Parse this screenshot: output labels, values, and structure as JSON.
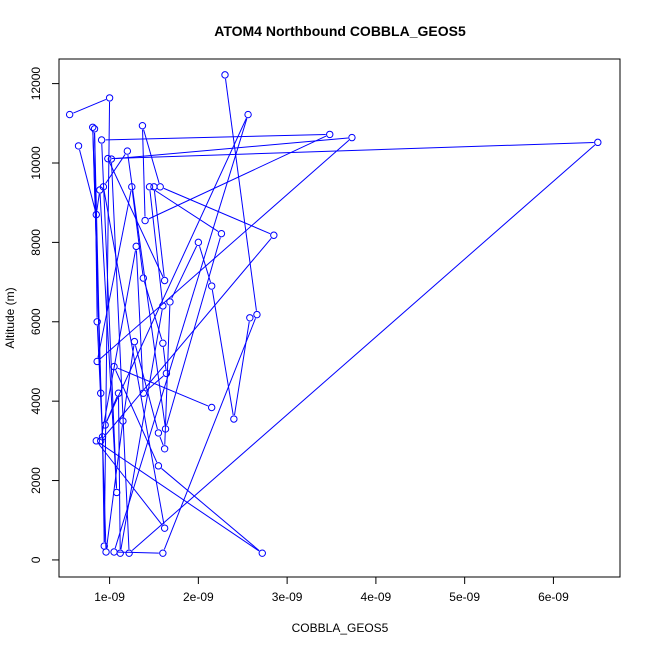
{
  "chart_data": {
    "type": "line",
    "title": "ATOM4 Northbound COBBLA_GEOS5",
    "xlabel": "COBBLA_GEOS5",
    "ylabel": "Altitude (m)",
    "xlim": [
      4.3e-10,
      6.75e-09
    ],
    "ylim": [
      -430,
      12620
    ],
    "x_ticks": [
      1e-09,
      2e-09,
      3e-09,
      4e-09,
      5e-09,
      6e-09
    ],
    "x_tick_labels": [
      "1e-09",
      "2e-09",
      "3e-09",
      "4e-09",
      "5e-09",
      "6e-09"
    ],
    "y_ticks": [
      0,
      2000,
      4000,
      6000,
      8000,
      10000,
      12000
    ],
    "y_tick_labels": [
      "0",
      "2000",
      "4000",
      "6000",
      "8000",
      "10000",
      "12000"
    ],
    "grid": false,
    "legend": "none",
    "series_color": "#0000ff",
    "series": [
      {
        "x": [
          5.5e-10,
          1e-09,
          9.4e-10,
          9.2e-10,
          8.6e-10,
          8.3e-10,
          9e-10,
          8.1e-10,
          9.6e-10,
          1.15e-09,
          1.28e-09,
          1.55e-09,
          1.62e-09,
          1.68e-09,
          2e-09,
          2.15e-09,
          2.4e-09,
          2.58e-09
        ],
        "y": [
          11220,
          11640,
          350,
          3100,
          6000,
          10860,
          4200,
          10900,
          200,
          3500,
          5500,
          3200,
          2800,
          6500,
          8000,
          6900,
          3550,
          6100
        ],
        "note": ""
      },
      {
        "x": [
          2.3e-09,
          2.66e-09,
          1.6e-09,
          1.05e-09,
          2.56e-09,
          9.5e-10,
          1.1e-09,
          1.12e-09,
          1.6e-09,
          1.45e-09,
          2.26e-09,
          1.63e-09,
          1.2e-09,
          9.3e-10,
          1.62e-09,
          8.5e-10,
          2.72e-09,
          1.55e-09,
          1.05e-09,
          2.15e-09
        ],
        "y": [
          12220,
          6180,
          170,
          200,
          11220,
          3400,
          4200,
          170,
          6400,
          9400,
          8220,
          3300,
          10300,
          9400,
          800,
          3000,
          170,
          2370,
          4870,
          3840
        ]
      },
      {
        "x": [
          6.5e-10,
          8.5e-10,
          8.9e-10,
          1.08e-09,
          9.1e-10,
          3.48e-09,
          1.4e-09,
          1.37e-09,
          1.57e-09,
          2.85e-09,
          9e-10,
          1.3e-09,
          1.38e-09,
          1.64e-09,
          1.6e-09,
          1.38e-09,
          1.25e-09,
          8.6e-10,
          3.73e-09,
          1.02e-09,
          1.22e-09,
          6.5e-09,
          9.8e-10,
          1.62e-09,
          1.5e-09
        ],
        "y": [
          10430,
          8700,
          9320,
          1700,
          10580,
          10720,
          8550,
          10940,
          9400,
          8180,
          3000,
          7900,
          4200,
          4700,
          5460,
          7100,
          9400,
          5000,
          10640,
          10100,
          170,
          10520,
          10110,
          7040,
          9400
        ]
      }
    ]
  }
}
